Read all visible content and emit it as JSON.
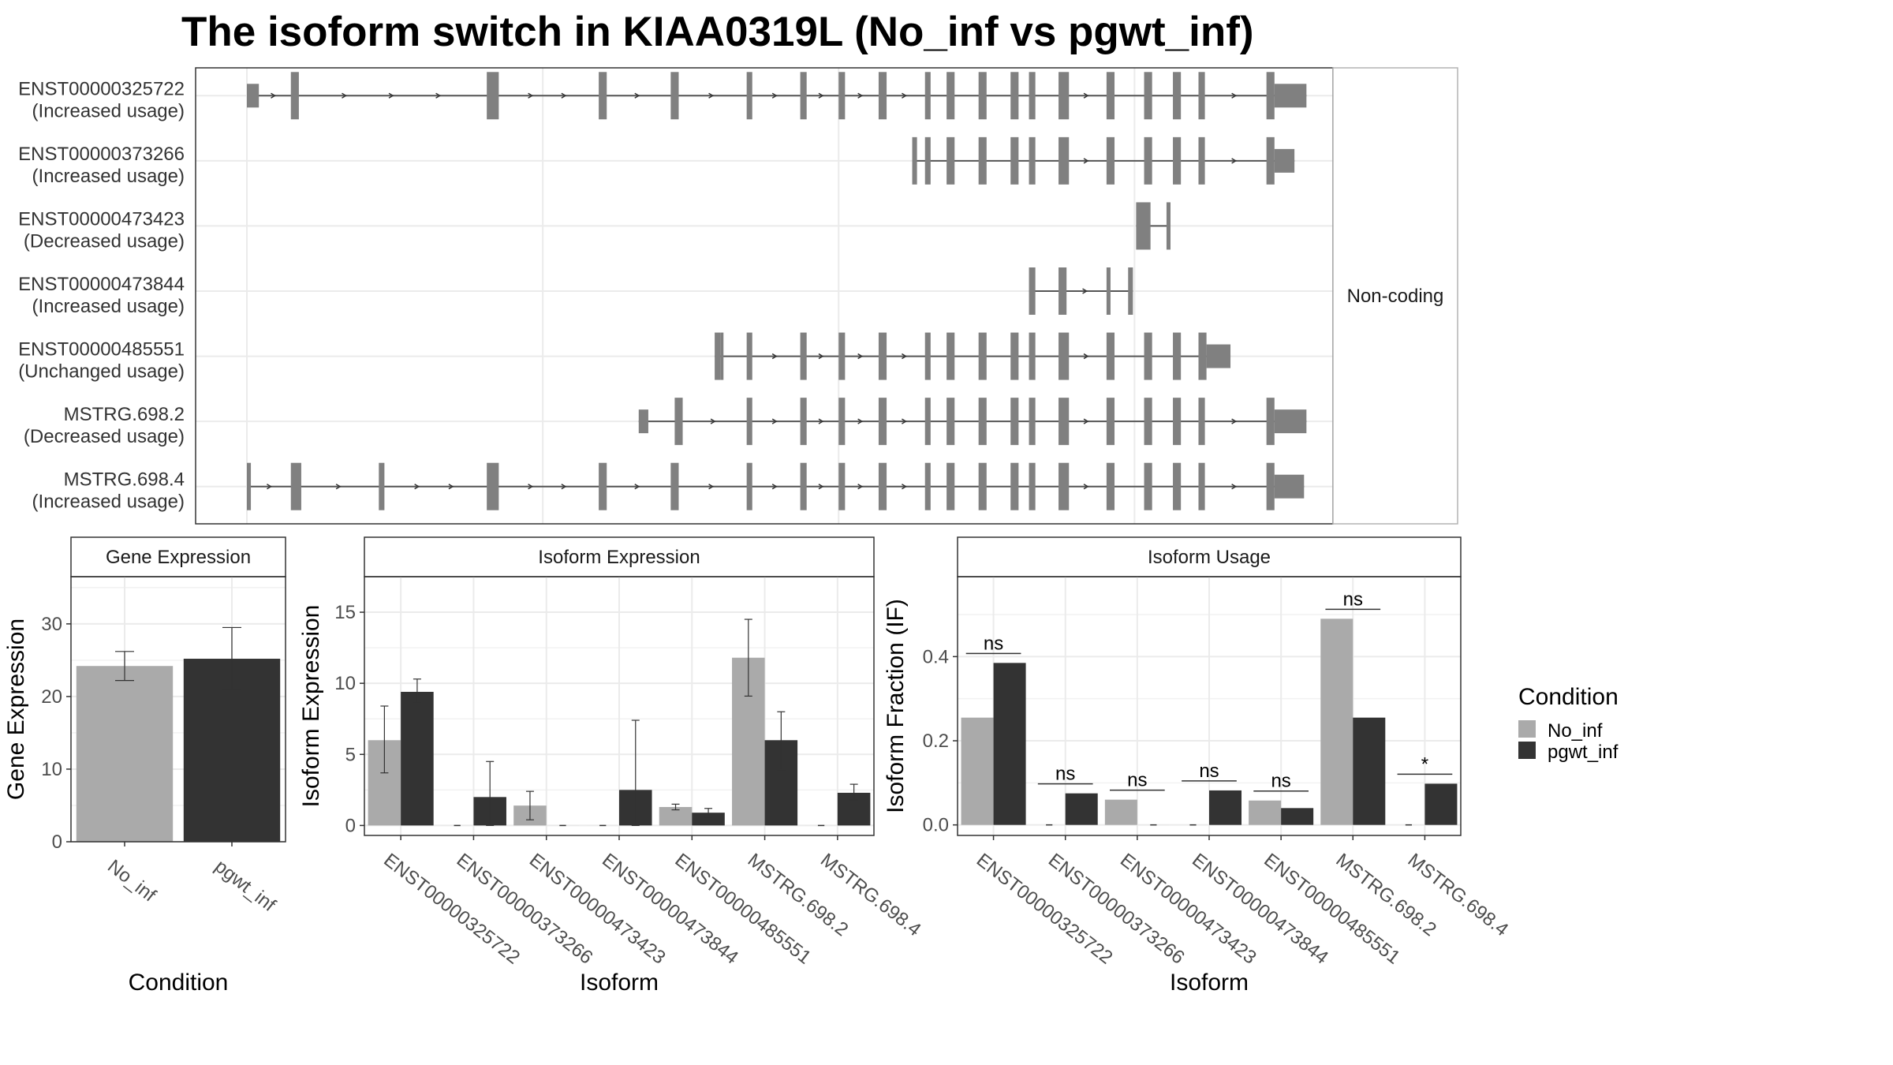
{
  "chart_data": [
    {
      "type": "gene-structure",
      "title": "The isoform switch in KIAA0319L (No_inf vs pgwt_inf)",
      "facet_label": "Non-coding",
      "x_range": [
        0,
        1300
      ],
      "grid_x": [
        0,
        370,
        740,
        1110
      ],
      "transcripts": [
        {
          "name": "ENST00000325722",
          "usage": "(Increased usage)",
          "strand": "+",
          "exons": [
            [
              0,
              15
            ],
            [
              55,
              65
            ],
            [
              300,
              315
            ],
            [
              440,
              450
            ],
            [
              530,
              540
            ],
            [
              625,
              632
            ],
            [
              692,
              700
            ],
            [
              740,
              748
            ],
            [
              790,
              800
            ],
            [
              848,
              855
            ],
            [
              875,
              885
            ],
            [
              915,
              925
            ],
            [
              955,
              965
            ],
            [
              978,
              986
            ],
            [
              1015,
              1028
            ],
            [
              1075,
              1085
            ],
            [
              1122,
              1132
            ],
            [
              1158,
              1168
            ],
            [
              1190,
              1198
            ],
            [
              1275,
              1285
            ],
            [
              1285,
              1325
            ]
          ]
        },
        {
          "name": "ENST00000373266",
          "usage": "(Increased usage)",
          "strand": "+",
          "exons": [
            [
              832,
              838
            ],
            [
              848,
              855
            ],
            [
              875,
              885
            ],
            [
              915,
              925
            ],
            [
              955,
              965
            ],
            [
              978,
              986
            ],
            [
              1015,
              1028
            ],
            [
              1075,
              1085
            ],
            [
              1122,
              1132
            ],
            [
              1158,
              1168
            ],
            [
              1190,
              1198
            ],
            [
              1275,
              1285
            ],
            [
              1285,
              1310
            ]
          ]
        },
        {
          "name": "ENST00000473423",
          "usage": "(Decreased usage)",
          "strand": "+",
          "exons": [
            [
              1112,
              1130
            ],
            [
              1150,
              1155
            ]
          ]
        },
        {
          "name": "ENST00000473844",
          "usage": "(Increased usage)",
          "strand": "+",
          "exons": [
            [
              978,
              986
            ],
            [
              1015,
              1025
            ],
            [
              1075,
              1080
            ],
            [
              1102,
              1108
            ]
          ]
        },
        {
          "name": "ENST00000485551",
          "usage": "(Unchanged usage)",
          "strand": "+",
          "exons": [
            [
              585,
              592
            ],
            [
              592,
              596
            ],
            [
              625,
              632
            ],
            [
              692,
              700
            ],
            [
              740,
              748
            ],
            [
              790,
              800
            ],
            [
              848,
              855
            ],
            [
              875,
              885
            ],
            [
              915,
              925
            ],
            [
              955,
              965
            ],
            [
              978,
              986
            ],
            [
              1015,
              1028
            ],
            [
              1075,
              1085
            ],
            [
              1122,
              1132
            ],
            [
              1158,
              1168
            ],
            [
              1190,
              1200
            ],
            [
              1200,
              1230
            ]
          ]
        },
        {
          "name": "MSTRG.698.2",
          "usage": "(Decreased usage)",
          "strand": "+",
          "exons": [
            [
              490,
              502
            ],
            [
              535,
              545
            ],
            [
              625,
              632
            ],
            [
              692,
              700
            ],
            [
              740,
              748
            ],
            [
              790,
              800
            ],
            [
              848,
              855
            ],
            [
              875,
              885
            ],
            [
              915,
              925
            ],
            [
              955,
              965
            ],
            [
              978,
              986
            ],
            [
              1015,
              1028
            ],
            [
              1075,
              1085
            ],
            [
              1122,
              1132
            ],
            [
              1158,
              1168
            ],
            [
              1190,
              1198
            ],
            [
              1275,
              1285
            ],
            [
              1285,
              1325
            ]
          ]
        },
        {
          "name": "MSTRG.698.4",
          "usage": "(Increased usage)",
          "strand": "+",
          "exons": [
            [
              0,
              5
            ],
            [
              55,
              68
            ],
            [
              165,
              172
            ],
            [
              300,
              315
            ],
            [
              440,
              450
            ],
            [
              530,
              540
            ],
            [
              625,
              632
            ],
            [
              692,
              700
            ],
            [
              740,
              748
            ],
            [
              790,
              800
            ],
            [
              848,
              855
            ],
            [
              875,
              885
            ],
            [
              915,
              925
            ],
            [
              955,
              965
            ],
            [
              978,
              986
            ],
            [
              1015,
              1028
            ],
            [
              1075,
              1085
            ],
            [
              1122,
              1132
            ],
            [
              1158,
              1168
            ],
            [
              1190,
              1198
            ],
            [
              1275,
              1285
            ],
            [
              1285,
              1322
            ]
          ]
        }
      ]
    },
    {
      "type": "bar",
      "panel": "Gene Expression",
      "xlabel": "Condition",
      "ylabel": "Gene Expression",
      "ylim": [
        0,
        36.5
      ],
      "yticks": [
        0,
        10,
        20,
        30
      ],
      "categories": [
        "No_inf",
        "pgwt_inf"
      ],
      "values": [
        24.2,
        25.2
      ],
      "err_low": [
        22.2,
        21.0
      ],
      "err_high": [
        26.2,
        29.5
      ],
      "colors": [
        "#aaaaaa",
        "#333333"
      ]
    },
    {
      "type": "bar",
      "panel": "Isoform Expression",
      "xlabel": "Isoform",
      "ylabel": "Isoform Expression",
      "ylim": [
        -0.7,
        17.5
      ],
      "yticks": [
        0,
        5,
        10,
        15
      ],
      "categories": [
        "ENST00000325722",
        "ENST00000373266",
        "ENST00000473423",
        "ENST00000473844",
        "ENST00000485551",
        "MSTRG.698.2",
        "MSTRG.698.4"
      ],
      "series": [
        {
          "name": "No_inf",
          "values": [
            6.0,
            0.0,
            1.4,
            0.0,
            1.3,
            11.8,
            0.0
          ],
          "err_low": [
            3.7,
            0.0,
            0.4,
            0.0,
            1.1,
            9.1,
            0.0
          ],
          "err_high": [
            8.4,
            0.0,
            2.4,
            0.0,
            1.5,
            14.5,
            0.0
          ]
        },
        {
          "name": "pgwt_inf",
          "values": [
            9.4,
            2.0,
            0.0,
            2.5,
            0.9,
            6.0,
            2.3
          ],
          "err_low": [
            8.6,
            0.0,
            0.0,
            0.0,
            0.6,
            3.9,
            1.8
          ],
          "err_high": [
            10.3,
            4.5,
            0.0,
            7.4,
            1.2,
            8.0,
            2.9
          ]
        }
      ]
    },
    {
      "type": "bar",
      "panel": "Isoform Usage",
      "xlabel": "Isoform",
      "ylabel": "Isoform Fraction (IF)",
      "ylim": [
        -0.025,
        0.59
      ],
      "yticks": [
        0.0,
        0.2,
        0.4
      ],
      "ytick_labels": [
        "0.0",
        "0.2",
        "0.4"
      ],
      "categories": [
        "ENST00000325722",
        "ENST00000373266",
        "ENST00000473423",
        "ENST00000473844",
        "ENST00000485551",
        "MSTRG.698.2",
        "MSTRG.698.4"
      ],
      "series": [
        {
          "name": "No_inf",
          "values": [
            0.255,
            0.0,
            0.06,
            0.0,
            0.058,
            0.49,
            0.0
          ]
        },
        {
          "name": "pgwt_inf",
          "values": [
            0.385,
            0.075,
            0.0,
            0.082,
            0.04,
            0.255,
            0.098
          ]
        }
      ],
      "significance": [
        "ns",
        "ns",
        "ns",
        "ns",
        "ns",
        "ns",
        "*"
      ]
    }
  ],
  "legend": {
    "title": "Condition",
    "items": [
      {
        "label": "No_inf",
        "color": "#aaaaaa"
      },
      {
        "label": "pgwt_inf",
        "color": "#333333"
      }
    ]
  }
}
